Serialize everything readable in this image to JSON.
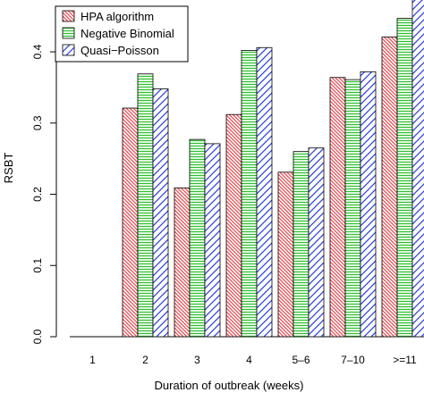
{
  "chart_data": {
    "type": "bar",
    "title": "",
    "xlabel": "Duration of outbreak (weeks)",
    "ylabel": "RSBT",
    "categories": [
      "1",
      "2",
      "3",
      "4",
      "5–6",
      "7–10",
      ">=11"
    ],
    "ylim": [
      0,
      0.47
    ],
    "yticks": [
      0.0,
      0.1,
      0.2,
      0.3,
      0.4
    ],
    "ytick_labels": [
      "0.0",
      "0.1",
      "0.2",
      "0.3",
      "0.4"
    ],
    "grid": false,
    "legend_position": "top-left",
    "series": [
      {
        "name": "HPA algorithm",
        "pattern": "diagonal-down",
        "color": "#e8474c",
        "values": [
          0.0,
          0.321,
          0.209,
          0.312,
          0.231,
          0.364,
          0.421
        ]
      },
      {
        "name": "Negative Binomial",
        "pattern": "horizontal",
        "color": "#2fbf2f",
        "values": [
          0.0,
          0.369,
          0.277,
          0.402,
          0.26,
          0.361,
          0.447
        ]
      },
      {
        "name": "Quasi−Poisson",
        "pattern": "diagonal-up",
        "color": "#2a3fd6",
        "values": [
          0.0,
          0.348,
          0.271,
          0.406,
          0.265,
          0.372,
          0.475
        ]
      }
    ]
  }
}
